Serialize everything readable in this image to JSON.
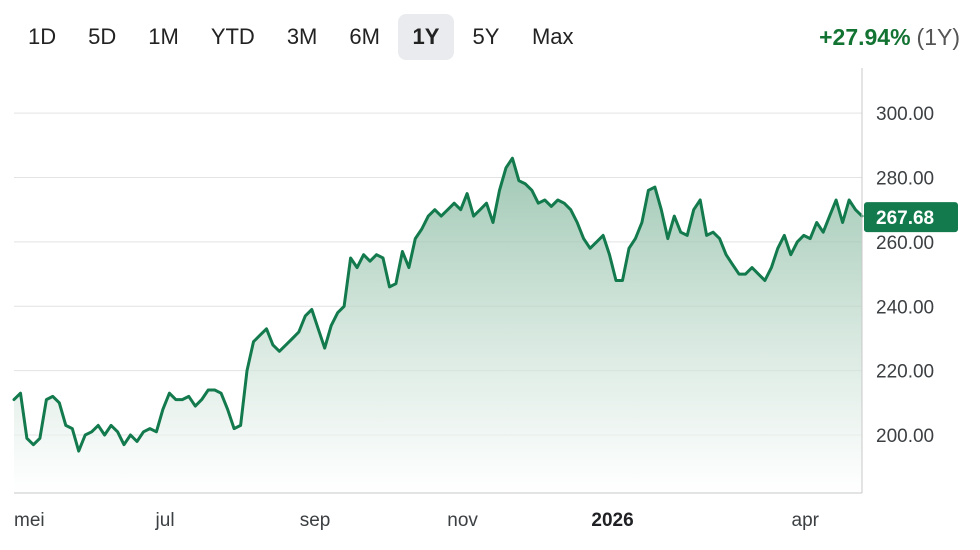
{
  "range_tabs": [
    {
      "label": "1D"
    },
    {
      "label": "5D"
    },
    {
      "label": "1M"
    },
    {
      "label": "YTD"
    },
    {
      "label": "3M"
    },
    {
      "label": "6M"
    },
    {
      "label": "1Y",
      "active": true
    },
    {
      "label": "5Y"
    },
    {
      "label": "Max"
    }
  ],
  "change": {
    "percent": "+27.94%",
    "period": "(1Y)"
  },
  "colors": {
    "line": "#137a4d",
    "fill_top": "#7fb59a",
    "positive": "#137333",
    "label_bg": "#137a4d",
    "grid": "#e3e3e3"
  },
  "chart_data": {
    "type": "area",
    "title": "",
    "xlabel": "",
    "ylabel": "",
    "ylim": [
      182,
      314
    ],
    "y_ticks": [
      "200.00",
      "220.00",
      "240.00",
      "260.00",
      "280.00",
      "300.00"
    ],
    "x_ticks": [
      {
        "label": "mei",
        "t": 0.0,
        "bold": false
      },
      {
        "label": "jul",
        "t": 0.174,
        "bold": false
      },
      {
        "label": "sep",
        "t": 0.344,
        "bold": false
      },
      {
        "label": "nov",
        "t": 0.518,
        "bold": false
      },
      {
        "label": "2026",
        "t": 0.688,
        "bold": true
      },
      {
        "label": "apr",
        "t": 0.924,
        "bold": false
      }
    ],
    "current_value": "267.68",
    "grid": true,
    "series": [
      {
        "values": [
          211,
          213,
          199,
          197,
          199,
          211,
          212,
          210,
          203,
          202,
          195,
          200,
          201,
          203,
          200,
          203,
          201,
          197,
          200,
          198,
          201,
          202,
          201,
          208,
          213,
          211,
          211,
          212,
          209,
          211,
          214,
          214,
          213,
          208,
          202,
          203,
          220,
          229,
          231,
          233,
          228,
          226,
          228,
          230,
          232,
          237,
          239,
          233,
          227,
          234,
          238,
          240,
          255,
          252,
          256,
          254,
          256,
          255,
          246,
          247,
          257,
          252,
          261,
          264,
          268,
          270,
          268,
          270,
          272,
          270,
          275,
          268,
          270,
          272,
          266,
          276,
          283,
          286,
          279,
          278,
          276,
          272,
          273,
          271,
          273,
          272,
          270,
          266,
          261,
          258,
          260,
          262,
          256,
          248,
          248,
          258,
          261,
          266,
          276,
          277,
          270,
          261,
          268,
          263,
          262,
          270,
          273,
          262,
          263,
          261,
          256,
          253,
          250,
          250,
          252,
          250,
          248,
          252,
          258,
          262,
          256,
          260,
          262,
          261,
          266,
          263,
          268,
          273,
          266,
          273,
          270,
          268
        ]
      }
    ]
  }
}
